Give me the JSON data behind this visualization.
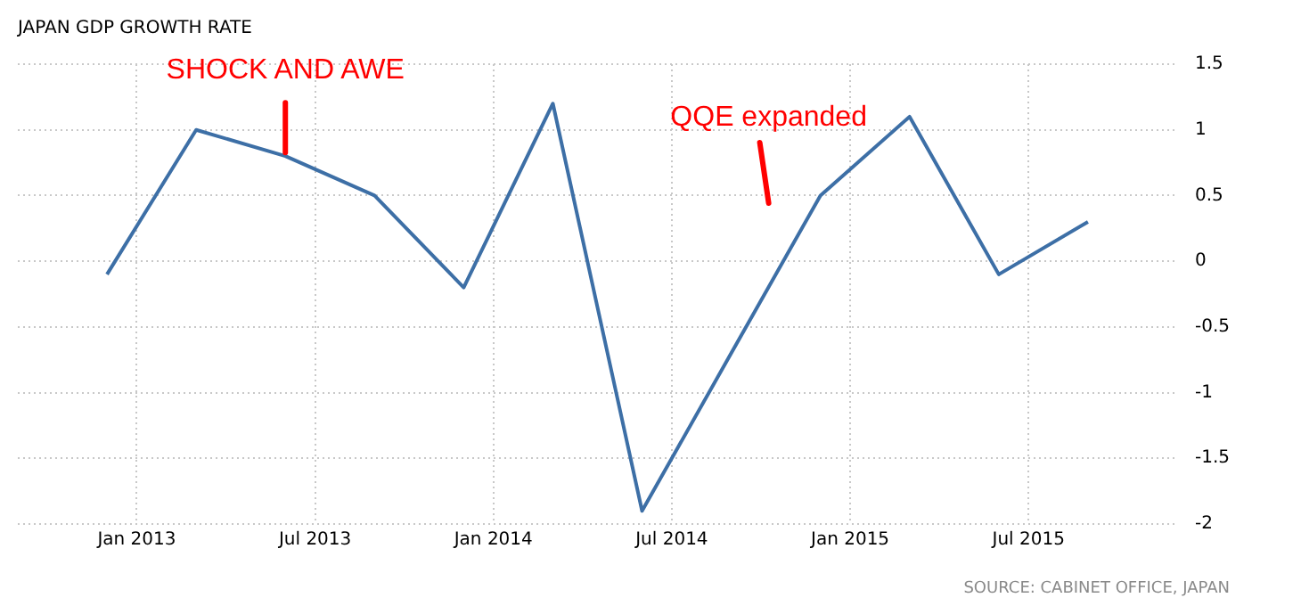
{
  "chart_data": {
    "type": "line",
    "title": "JAPAN GDP GROWTH RATE",
    "x": [
      "2012-12",
      "2013-03",
      "2013-06",
      "2013-09",
      "2013-12",
      "2014-03",
      "2014-06",
      "2014-09",
      "2014-12",
      "2015-03",
      "2015-06",
      "2015-09"
    ],
    "series": [
      {
        "color": "#3d6fa6",
        "values": [
          -0.1,
          1.0,
          0.8,
          0.5,
          -0.2,
          1.2,
          -1.9,
          -0.7,
          0.5,
          1.1,
          -0.1,
          0.3
        ]
      }
    ],
    "xlim": [
      "2012-09",
      "2015-12"
    ],
    "xticks": [
      {
        "value": "2013-01",
        "label": "Jan 2013"
      },
      {
        "value": "2013-07",
        "label": "Jul 2013"
      },
      {
        "value": "2014-01",
        "label": "Jan 2014"
      },
      {
        "value": "2014-07",
        "label": "Jul 2014"
      },
      {
        "value": "2015-01",
        "label": "Jan 2015"
      },
      {
        "value": "2015-07",
        "label": "Jul 2015"
      }
    ],
    "ylim": [
      -2,
      1.5
    ],
    "yticks": [
      -2,
      -1.5,
      -1,
      -0.5,
      0,
      0.5,
      1,
      1.5
    ],
    "grid": true,
    "legend": false,
    "marker": "none",
    "line_style": "solid",
    "annotations": [
      {
        "text": "SHOCK AND AWE",
        "x": "2013-06",
        "y": 0.8
      },
      "QQE expanded",
      "SOURCE: CABINET OFFICE, JAPAN"
    ]
  }
}
